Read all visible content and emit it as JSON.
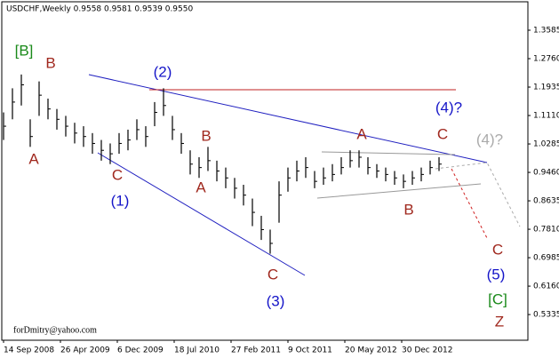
{
  "chart_data": {
    "type": "hlc",
    "title": "USDCHF,Weekly  0.9558 0.9581 0.9539 0.9550",
    "x": [
      0,
      5,
      10,
      15,
      20,
      25,
      30,
      35,
      40,
      45,
      50,
      55,
      60,
      65,
      70,
      75,
      80,
      85,
      90,
      95,
      100,
      105,
      110,
      115,
      120,
      125,
      130,
      135,
      140,
      145,
      150,
      155,
      160,
      165,
      170,
      175,
      180,
      185,
      190,
      195,
      200,
      205,
      210,
      215,
      220,
      225,
      230,
      235,
      240,
      245
    ],
    "high": [
      1.12,
      1.19,
      1.23,
      1.1,
      1.21,
      1.16,
      1.13,
      1.11,
      1.09,
      1.08,
      1.06,
      1.04,
      1.03,
      1.06,
      1.07,
      1.1,
      1.08,
      1.15,
      1.19,
      1.11,
      1.06,
      1.01,
      0.99,
      1.02,
      0.98,
      0.96,
      0.93,
      0.91,
      0.87,
      0.82,
      0.78,
      0.92,
      0.96,
      0.98,
      0.99,
      0.95,
      0.96,
      0.97,
      0.99,
      1.01,
      1.01,
      0.99,
      0.97,
      0.96,
      0.95,
      0.94,
      0.95,
      0.96,
      0.98,
      0.99
    ],
    "low": [
      1.04,
      1.1,
      1.14,
      1.02,
      1.11,
      1.1,
      1.07,
      1.05,
      1.03,
      1.02,
      1.0,
      0.98,
      0.97,
      1.0,
      1.01,
      1.04,
      1.02,
      1.08,
      1.11,
      1.04,
      1.0,
      0.94,
      0.93,
      0.95,
      0.92,
      0.9,
      0.87,
      0.85,
      0.79,
      0.75,
      0.71,
      0.8,
      0.89,
      0.92,
      0.93,
      0.9,
      0.91,
      0.92,
      0.94,
      0.96,
      0.96,
      0.94,
      0.93,
      0.92,
      0.91,
      0.9,
      0.91,
      0.92,
      0.94,
      0.95
    ],
    "close": [
      1.08,
      1.15,
      1.2,
      1.05,
      1.17,
      1.13,
      1.1,
      1.08,
      1.06,
      1.05,
      1.03,
      1.01,
      1.0,
      1.03,
      1.04,
      1.07,
      1.05,
      1.12,
      1.14,
      1.07,
      1.03,
      0.97,
      0.96,
      0.98,
      0.95,
      0.93,
      0.9,
      0.88,
      0.83,
      0.78,
      0.74,
      0.88,
      0.93,
      0.95,
      0.96,
      0.92,
      0.93,
      0.94,
      0.96,
      0.98,
      0.99,
      0.96,
      0.95,
      0.94,
      0.93,
      0.92,
      0.93,
      0.94,
      0.96,
      0.97
    ],
    "color": "#000000",
    "xlim": [
      -1,
      295
    ],
    "xticks": [
      {
        "value": 0,
        "label": "14 Sep 2008"
      },
      {
        "value": 32,
        "label": "26 Apr 2009"
      },
      {
        "value": 64,
        "label": "6 Dec 2009"
      },
      {
        "value": 96,
        "label": "18 Jul 2010"
      },
      {
        "value": 128,
        "label": "27 Feb 2011"
      },
      {
        "value": 160,
        "label": "9 Oct 2011"
      },
      {
        "value": 192,
        "label": "20 May 2012"
      },
      {
        "value": 224,
        "label": "30 Dec 2012"
      }
    ],
    "ylim": [
      0.459,
      1.441
    ],
    "yticks": [
      {
        "value": 1.3585,
        "label": "1.3585"
      },
      {
        "value": 1.276,
        "label": "1.2760"
      },
      {
        "value": 1.1935,
        "label": "1.1935"
      },
      {
        "value": 1.111,
        "label": "1.1110"
      },
      {
        "value": 1.0285,
        "label": "1.0285"
      },
      {
        "value": 0.946,
        "label": "0.9460"
      },
      {
        "value": 0.8635,
        "label": "0.8635"
      },
      {
        "value": 0.781,
        "label": "0.7810"
      },
      {
        "value": 0.6985,
        "label": "0.6985"
      },
      {
        "value": 0.616,
        "label": "0.6160"
      },
      {
        "value": 0.5335,
        "label": "0.5335"
      }
    ],
    "annotations": [
      "[B]",
      "B",
      "A",
      "C",
      "(1)",
      "(2)",
      "B",
      "A",
      "C",
      "(3)",
      "A",
      "C",
      "(4)?",
      "B",
      "(4)?",
      "C",
      "(5)",
      "[C]",
      "Z"
    ],
    "credit": "forDmitry@yahoo.com"
  }
}
